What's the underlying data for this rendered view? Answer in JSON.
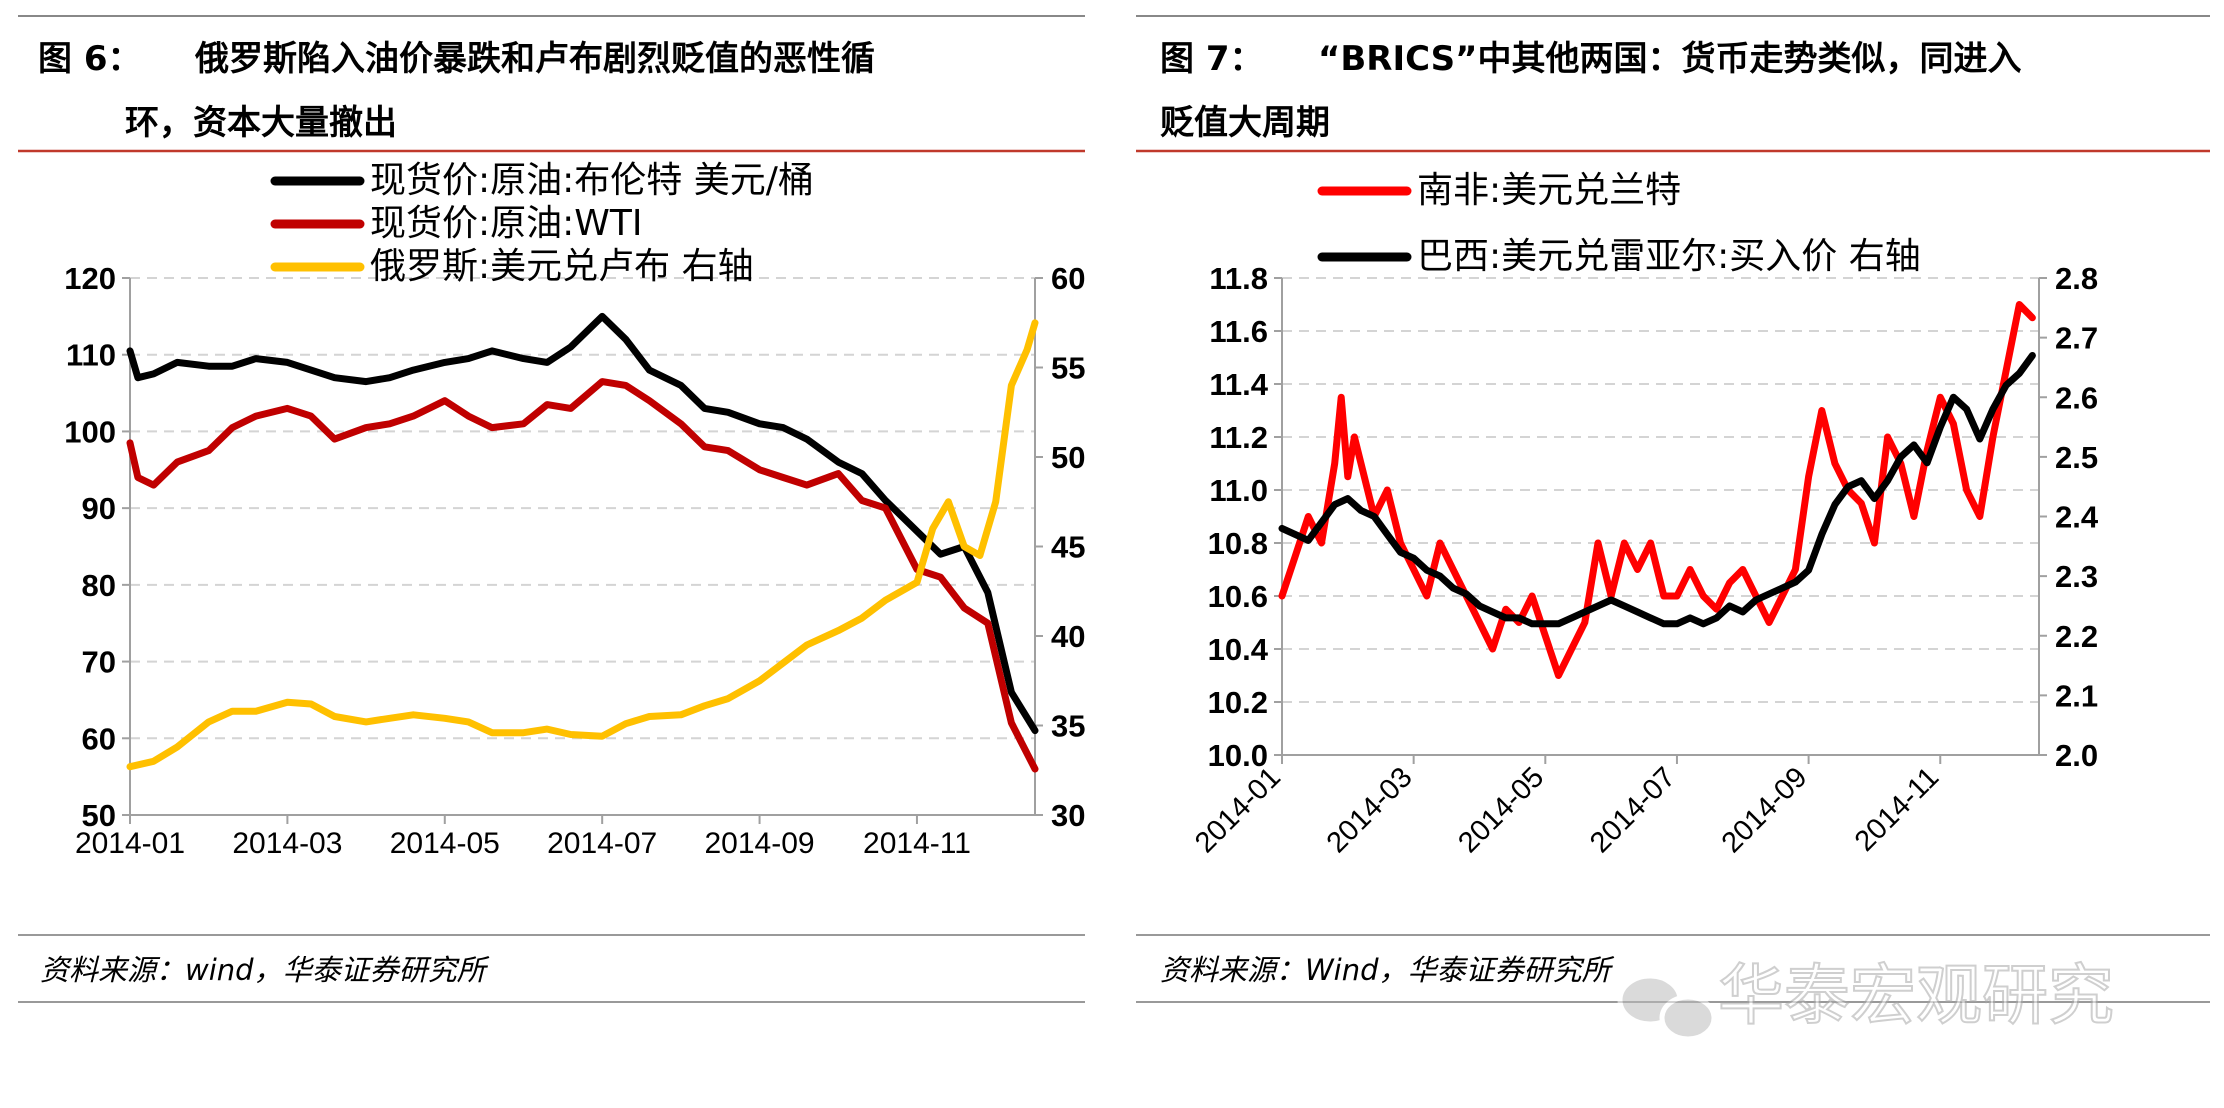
{
  "watermark": "华泰宏观研究",
  "panels": [
    {
      "figure_label": "图 6：",
      "title_lines": [
        "俄罗斯陷入油价暴跌和卢布剧烈贬值的恶性循",
        "环，资本大量撤出"
      ],
      "source": "资料来源：wind，华泰证券研究所"
    },
    {
      "figure_label": "图 7：",
      "title_lines": [
        "“BRICS”中其他两国：货币走势类似，同进入",
        "贬值大周期"
      ],
      "source": "资料来源：Wind，华泰证券研究所"
    }
  ],
  "chart_data": [
    {
      "type": "line",
      "x_ticks": [
        "2014-01",
        "2014-03",
        "2014-05",
        "2014-07",
        "2014-09",
        "2014-11"
      ],
      "x_tick_positions": [
        0,
        2,
        4,
        6,
        8,
        10
      ],
      "x_range": [
        0,
        11.5
      ],
      "y_left": {
        "ylim": [
          50,
          120
        ],
        "ticks": [
          50,
          60,
          70,
          80,
          90,
          100,
          110,
          120
        ]
      },
      "y_right": {
        "ylim": [
          30,
          60
        ],
        "ticks": [
          30,
          35,
          40,
          45,
          50,
          55,
          60
        ]
      },
      "grid": true,
      "legend_position": "top-center",
      "series": [
        {
          "name": "现货价:原油:布伦特 美元/桶",
          "axis": "left",
          "color": "#000000",
          "x": [
            0,
            0.1,
            0.3,
            0.6,
            1.0,
            1.3,
            1.6,
            2.0,
            2.3,
            2.6,
            3.0,
            3.3,
            3.6,
            4.0,
            4.3,
            4.6,
            5.0,
            5.3,
            5.6,
            6.0,
            6.3,
            6.6,
            7.0,
            7.3,
            7.6,
            8.0,
            8.3,
            8.6,
            9.0,
            9.3,
            9.6,
            10.0,
            10.3,
            10.6,
            10.9,
            11.2,
            11.5
          ],
          "values": [
            110.5,
            107,
            107.5,
            109,
            108.5,
            108.5,
            109.5,
            109,
            108,
            107,
            106.5,
            107,
            108,
            109,
            109.5,
            110.5,
            109.5,
            109,
            111,
            115,
            112,
            108,
            106,
            103,
            102.5,
            101,
            100.5,
            99,
            96,
            94.5,
            91,
            87,
            84,
            85,
            79,
            66,
            61
          ]
        },
        {
          "name": "现货价:原油:WTI",
          "axis": "left",
          "color": "#c00000",
          "x": [
            0,
            0.1,
            0.3,
            0.6,
            1.0,
            1.3,
            1.6,
            2.0,
            2.3,
            2.6,
            3.0,
            3.3,
            3.6,
            4.0,
            4.3,
            4.6,
            5.0,
            5.3,
            5.6,
            6.0,
            6.3,
            6.6,
            7.0,
            7.3,
            7.6,
            8.0,
            8.3,
            8.6,
            9.0,
            9.3,
            9.6,
            10.0,
            10.3,
            10.6,
            10.9,
            11.2,
            11.5
          ],
          "values": [
            98.5,
            94,
            93,
            96,
            97.5,
            100.5,
            102,
            103,
            102,
            99,
            100.5,
            101,
            102,
            104,
            102,
            100.5,
            101,
            103.5,
            103,
            106.5,
            106,
            104,
            101,
            98,
            97.5,
            95,
            94,
            93,
            94.5,
            91,
            90,
            82,
            81,
            77,
            75,
            62,
            56
          ]
        },
        {
          "name": "俄罗斯:美元兑卢布 右轴",
          "axis": "right",
          "color": "#ffc000",
          "x": [
            0,
            0.3,
            0.6,
            1.0,
            1.3,
            1.6,
            2.0,
            2.3,
            2.6,
            3.0,
            3.3,
            3.6,
            4.0,
            4.3,
            4.6,
            5.0,
            5.3,
            5.6,
            6.0,
            6.3,
            6.6,
            7.0,
            7.3,
            7.6,
            8.0,
            8.3,
            8.6,
            9.0,
            9.3,
            9.6,
            10.0,
            10.2,
            10.4,
            10.6,
            10.8,
            11.0,
            11.2,
            11.4,
            11.5
          ],
          "values": [
            32.7,
            33,
            33.8,
            35.2,
            35.8,
            35.8,
            36.3,
            36.2,
            35.5,
            35.2,
            35.4,
            35.6,
            35.4,
            35.2,
            34.6,
            34.6,
            34.8,
            34.5,
            34.4,
            35.1,
            35.5,
            35.6,
            36.1,
            36.5,
            37.5,
            38.5,
            39.5,
            40.3,
            41,
            42,
            43,
            46,
            47.5,
            45,
            44.5,
            47.5,
            54,
            56,
            57.5
          ]
        }
      ]
    },
    {
      "type": "line",
      "x_ticks": [
        "2014-01",
        "2014-03",
        "2014-05",
        "2014-07",
        "2014-09",
        "2014-11"
      ],
      "x_tick_positions": [
        0,
        2,
        4,
        6,
        8,
        10
      ],
      "x_range": [
        0,
        11.5
      ],
      "y_left": {
        "ylim": [
          10.0,
          11.8
        ],
        "ticks": [
          10.0,
          10.2,
          10.4,
          10.6,
          10.8,
          11.0,
          11.2,
          11.4,
          11.6,
          11.8
        ]
      },
      "y_right": {
        "ylim": [
          2.0,
          2.8
        ],
        "ticks": [
          2.0,
          2.1,
          2.2,
          2.3,
          2.4,
          2.5,
          2.6,
          2.7,
          2.8
        ]
      },
      "grid": true,
      "legend_position": "top-center",
      "series": [
        {
          "name": "南非:美元兑兰特",
          "axis": "left",
          "color": "#ff0000",
          "x": [
            0,
            0.2,
            0.4,
            0.6,
            0.8,
            0.9,
            1.0,
            1.1,
            1.2,
            1.4,
            1.6,
            1.8,
            2.0,
            2.2,
            2.4,
            2.6,
            2.8,
            3.0,
            3.2,
            3.4,
            3.6,
            3.8,
            4.0,
            4.2,
            4.4,
            4.6,
            4.8,
            5.0,
            5.2,
            5.4,
            5.6,
            5.8,
            6.0,
            6.2,
            6.4,
            6.6,
            6.8,
            7.0,
            7.2,
            7.4,
            7.6,
            7.8,
            8.0,
            8.2,
            8.4,
            8.6,
            8.8,
            9.0,
            9.2,
            9.4,
            9.6,
            9.8,
            10.0,
            10.2,
            10.4,
            10.6,
            10.8,
            11.0,
            11.2,
            11.4
          ],
          "values": [
            10.6,
            10.75,
            10.9,
            10.8,
            11.1,
            11.35,
            11.05,
            11.2,
            11.1,
            10.9,
            11.0,
            10.8,
            10.7,
            10.6,
            10.8,
            10.7,
            10.6,
            10.5,
            10.4,
            10.55,
            10.5,
            10.6,
            10.45,
            10.3,
            10.4,
            10.5,
            10.8,
            10.6,
            10.8,
            10.7,
            10.8,
            10.6,
            10.6,
            10.7,
            10.6,
            10.55,
            10.65,
            10.7,
            10.6,
            10.5,
            10.6,
            10.7,
            11.05,
            11.3,
            11.1,
            11.0,
            10.95,
            10.8,
            11.2,
            11.1,
            10.9,
            11.15,
            11.35,
            11.25,
            11.0,
            10.9,
            11.2,
            11.45,
            11.7,
            11.65
          ]
        },
        {
          "name": "巴西:美元兑雷亚尔:买入价 右轴",
          "axis": "right",
          "color": "#000000",
          "x": [
            0,
            0.2,
            0.4,
            0.6,
            0.8,
            1.0,
            1.2,
            1.4,
            1.6,
            1.8,
            2.0,
            2.2,
            2.4,
            2.6,
            2.8,
            3.0,
            3.2,
            3.4,
            3.6,
            3.8,
            4.0,
            4.2,
            4.4,
            4.6,
            4.8,
            5.0,
            5.2,
            5.4,
            5.6,
            5.8,
            6.0,
            6.2,
            6.4,
            6.6,
            6.8,
            7.0,
            7.2,
            7.4,
            7.6,
            7.8,
            8.0,
            8.2,
            8.4,
            8.6,
            8.8,
            9.0,
            9.2,
            9.4,
            9.6,
            9.8,
            10.0,
            10.2,
            10.4,
            10.6,
            10.8,
            11.0,
            11.2,
            11.4
          ],
          "values": [
            2.38,
            2.37,
            2.36,
            2.39,
            2.42,
            2.43,
            2.41,
            2.4,
            2.37,
            2.34,
            2.33,
            2.31,
            2.3,
            2.28,
            2.27,
            2.25,
            2.24,
            2.23,
            2.23,
            2.22,
            2.22,
            2.22,
            2.23,
            2.24,
            2.25,
            2.26,
            2.25,
            2.24,
            2.23,
            2.22,
            2.22,
            2.23,
            2.22,
            2.23,
            2.25,
            2.24,
            2.26,
            2.27,
            2.28,
            2.29,
            2.31,
            2.37,
            2.42,
            2.45,
            2.46,
            2.43,
            2.46,
            2.5,
            2.52,
            2.49,
            2.55,
            2.6,
            2.58,
            2.53,
            2.58,
            2.62,
            2.64,
            2.67
          ]
        }
      ]
    }
  ]
}
